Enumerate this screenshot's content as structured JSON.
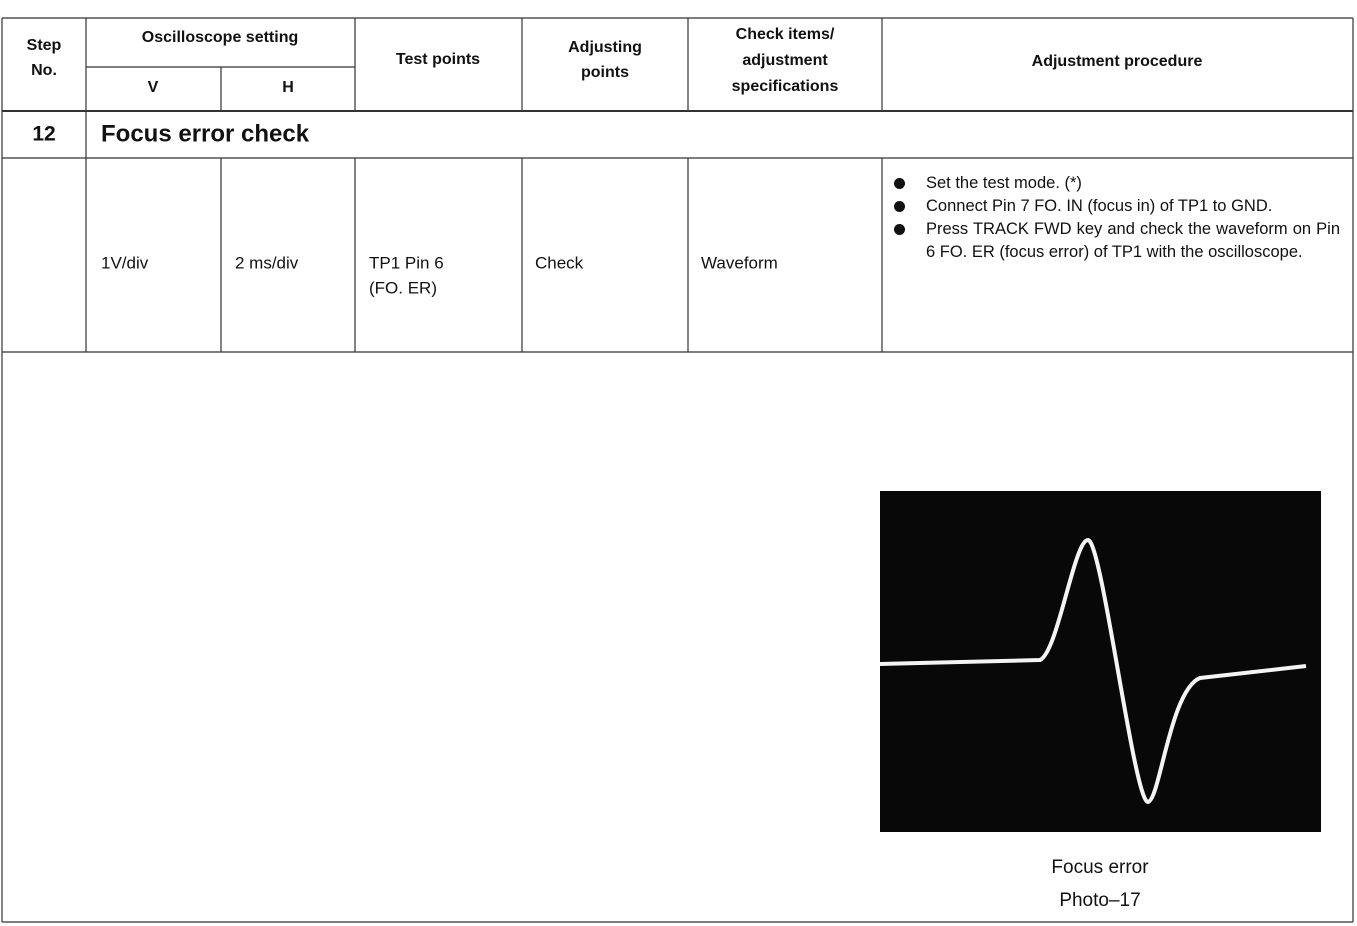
{
  "header": {
    "step_no": [
      "Step",
      "No."
    ],
    "oscilloscope_setting": "Oscilloscope setting",
    "v": "V",
    "h": "H",
    "test_points": "Test points",
    "adjusting_points": [
      "Adjusting",
      "points"
    ],
    "check_items": [
      "Check items/",
      "adjustment",
      "specifications"
    ],
    "adjustment_procedure": "Adjustment procedure"
  },
  "section": {
    "step": "12",
    "title": "Focus error check"
  },
  "row": {
    "v": "1V/div",
    "h": "2 ms/div",
    "test_points": [
      "TP1 Pin 6",
      "(FO. ER)"
    ],
    "adjusting_points": "Check",
    "check_items": "Waveform",
    "procedure": [
      "Set the test mode. (*)",
      "Connect Pin 7 FO. IN (focus in) of TP1 to GND.",
      "Press TRACK FWD key and check the waveform on Pin 6 FO. ER (focus error) of TP1 with the oscilloscope."
    ]
  },
  "photo": {
    "caption": "Focus error",
    "label": "Photo–17"
  }
}
